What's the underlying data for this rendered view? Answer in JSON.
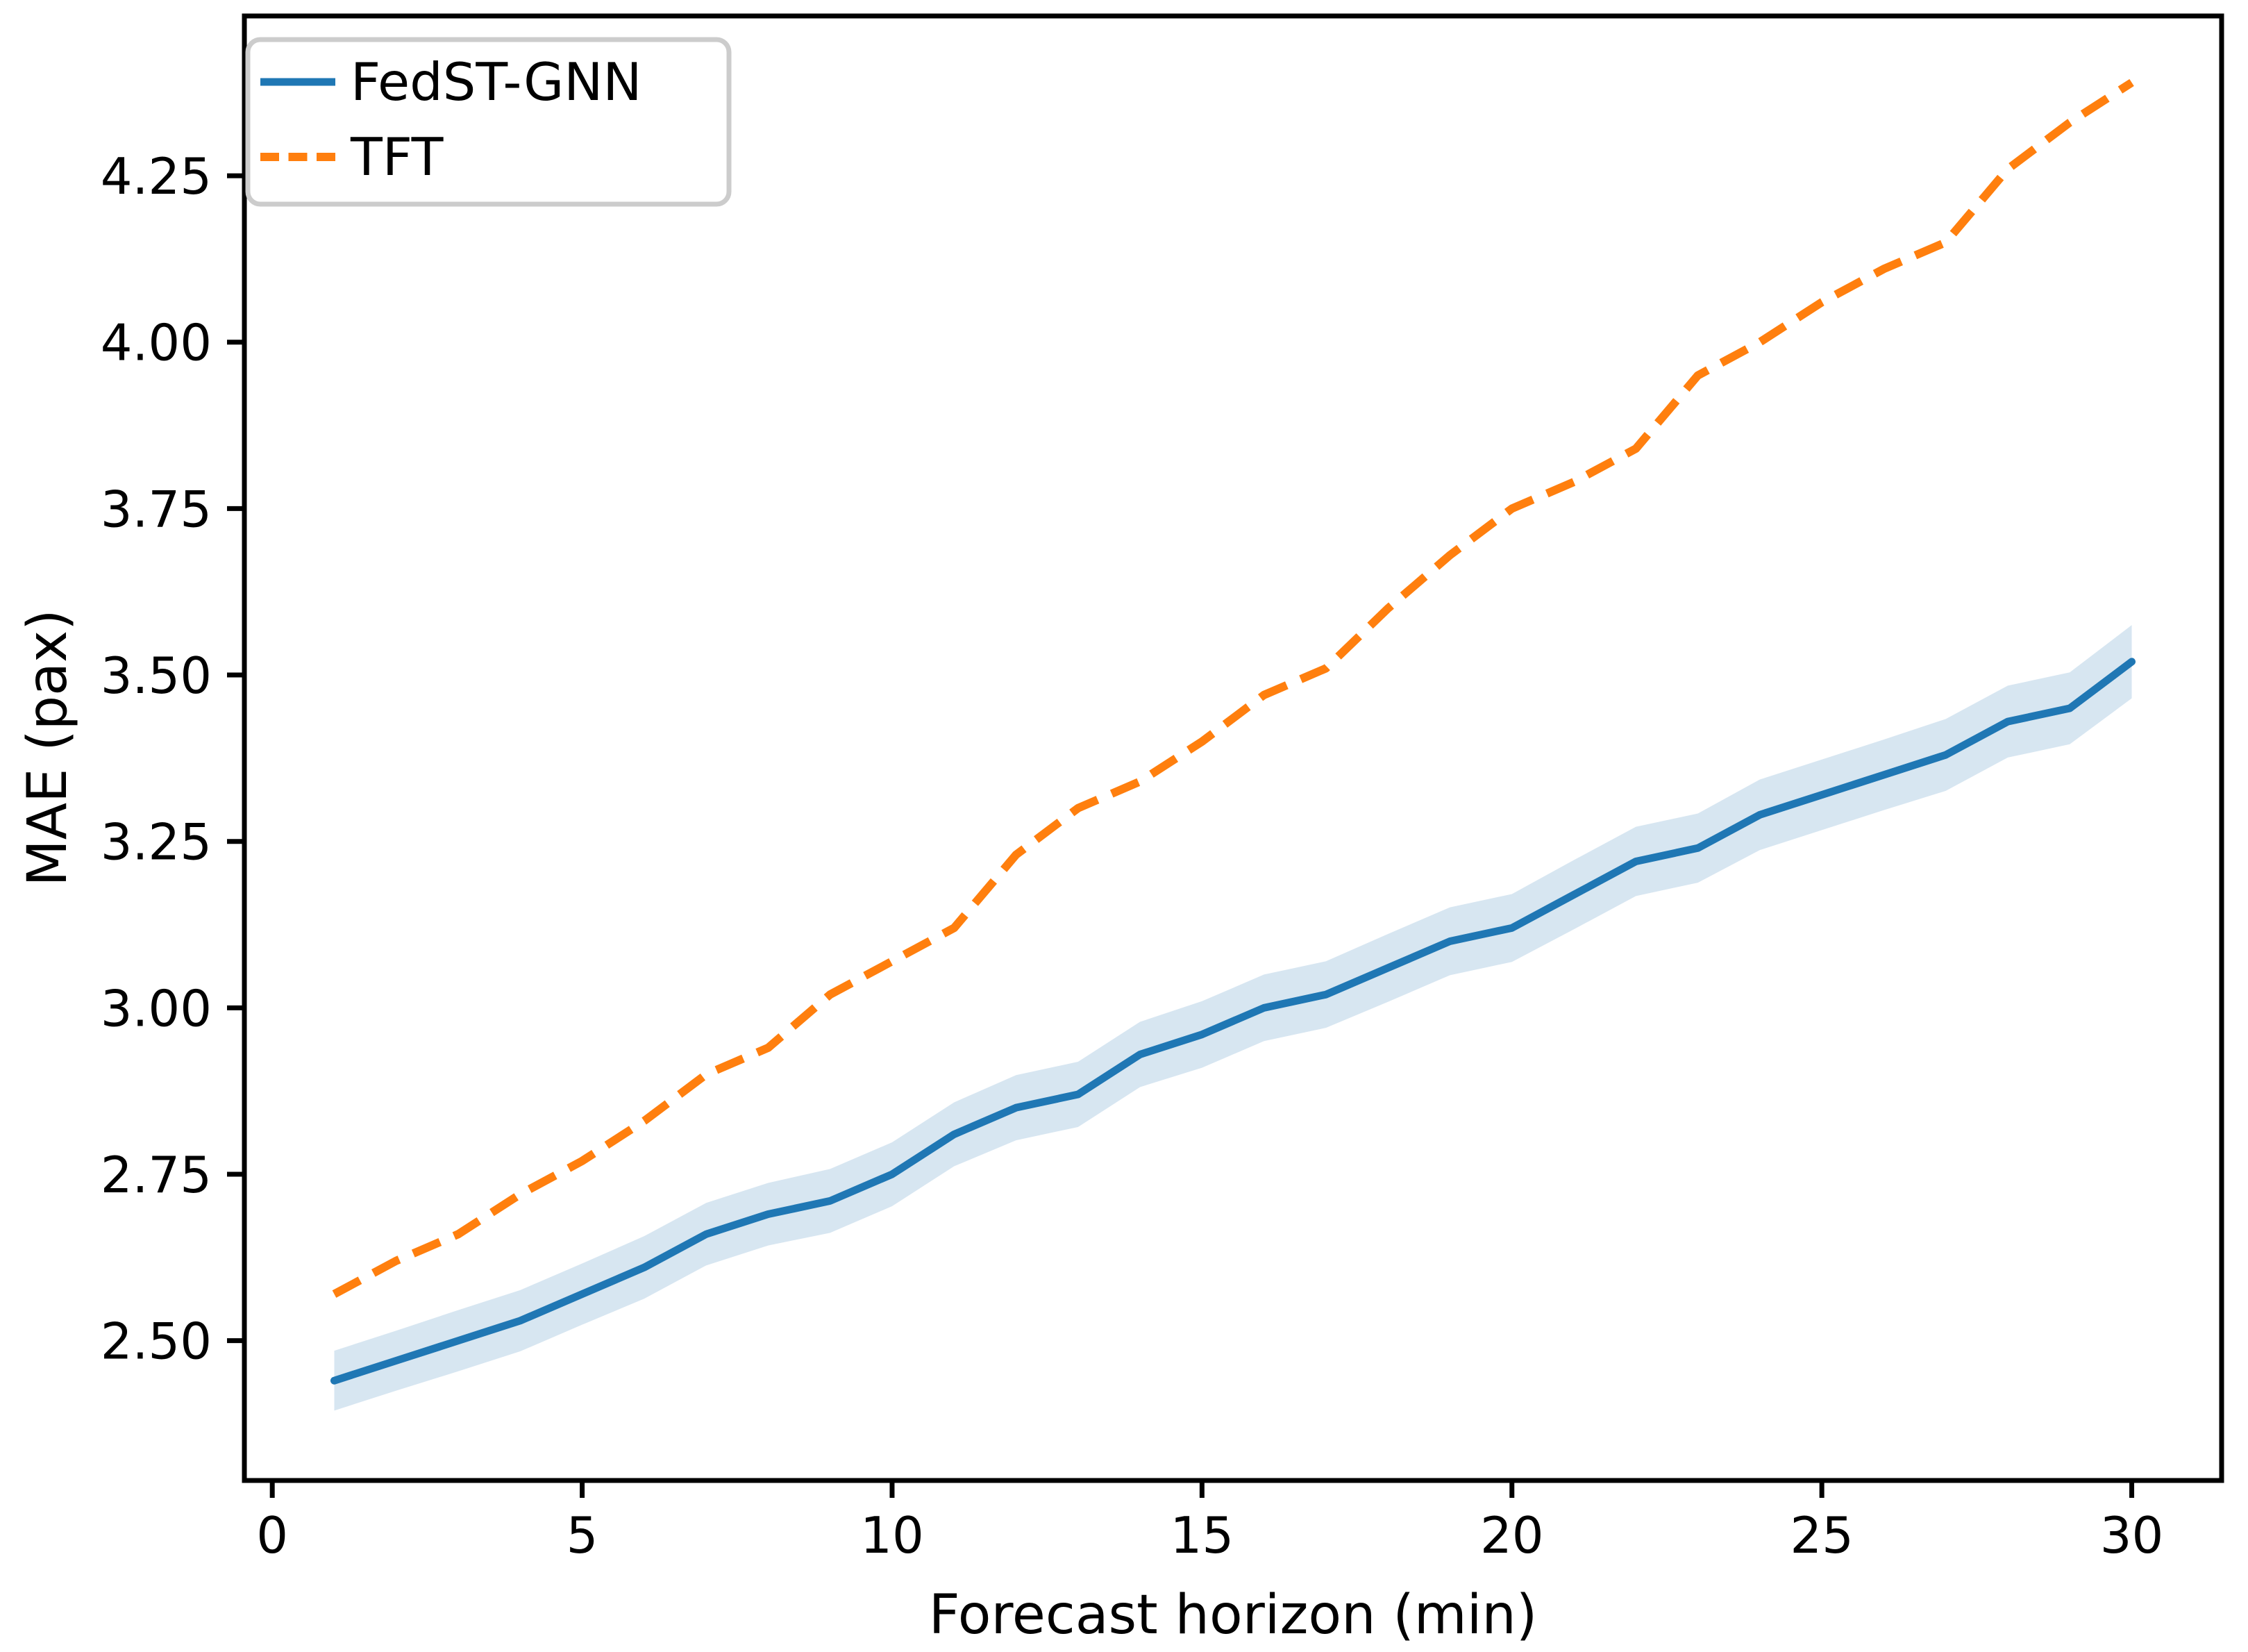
{
  "chart_data": {
    "type": "line",
    "title": "",
    "xlabel": "Forecast horizon (min)",
    "ylabel": "MAE (pax)",
    "x": [
      1,
      2,
      3,
      4,
      5,
      6,
      7,
      8,
      9,
      10,
      11,
      12,
      13,
      14,
      15,
      16,
      17,
      18,
      19,
      20,
      21,
      22,
      23,
      24,
      25,
      26,
      27,
      28,
      29,
      30
    ],
    "series": [
      {
        "name": "FedST-GNN",
        "color": "#1f77b4",
        "line_style": "solid",
        "values": [
          2.44,
          2.47,
          2.5,
          2.53,
          2.57,
          2.61,
          2.66,
          2.69,
          2.71,
          2.75,
          2.81,
          2.85,
          2.87,
          2.93,
          2.96,
          3.0,
          3.02,
          3.06,
          3.1,
          3.12,
          3.17,
          3.22,
          3.24,
          3.29,
          3.32,
          3.35,
          3.38,
          3.43,
          3.45,
          3.52
        ],
        "ci_halfwidth": [
          0.045,
          0.045,
          0.046,
          0.046,
          0.046,
          0.047,
          0.047,
          0.047,
          0.048,
          0.048,
          0.048,
          0.049,
          0.049,
          0.049,
          0.05,
          0.05,
          0.05,
          0.051,
          0.051,
          0.051,
          0.052,
          0.052,
          0.052,
          0.053,
          0.053,
          0.053,
          0.054,
          0.054,
          0.054,
          0.055
        ]
      },
      {
        "name": "TFT",
        "color": "#ff7f0e",
        "line_style": "dashed",
        "values": [
          2.57,
          2.62,
          2.66,
          2.72,
          2.77,
          2.83,
          2.9,
          2.94,
          3.02,
          3.07,
          3.12,
          3.23,
          3.3,
          3.34,
          3.4,
          3.47,
          3.51,
          3.6,
          3.68,
          3.75,
          3.79,
          3.84,
          3.95,
          4.0,
          4.06,
          4.11,
          4.15,
          4.26,
          4.33,
          4.39
        ]
      }
    ],
    "xlim": [
      -0.45,
      31.45
    ],
    "ylim": [
      2.29,
      4.49
    ],
    "xticks": [
      0,
      5,
      10,
      15,
      20,
      25,
      30
    ],
    "xtick_labels": [
      "0",
      "5",
      "10",
      "15",
      "20",
      "25",
      "30"
    ],
    "yticks": [
      2.5,
      2.75,
      3.0,
      3.25,
      3.5,
      3.75,
      4.0,
      4.25
    ],
    "ytick_labels": [
      "2.50",
      "2.75",
      "3.00",
      "3.25",
      "3.50",
      "3.75",
      "4.00",
      "4.25"
    ],
    "grid": false,
    "legend": {
      "position": "upper-left",
      "entries": [
        "FedST-GNN",
        "TFT"
      ]
    },
    "band_opacity": 0.18,
    "colors": {
      "spine": "#000000",
      "legend_border": "#cccccc",
      "text": "#000000"
    }
  }
}
